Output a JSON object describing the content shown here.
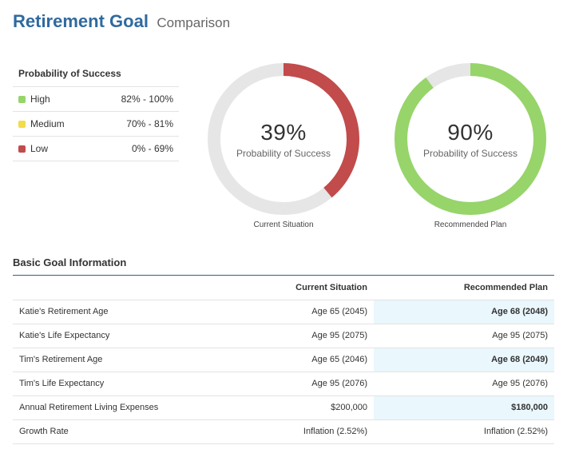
{
  "header": {
    "title": "Retirement Goal",
    "subtitle": "Comparison"
  },
  "legend": {
    "title": "Probability of Success",
    "items": [
      {
        "label": "High",
        "range": "82% - 100%",
        "color": "#97d46a"
      },
      {
        "label": "Medium",
        "range": "70% - 81%",
        "color": "#f2dc4a"
      },
      {
        "label": "Low",
        "range": "0% - 69%",
        "color": "#c24b4b"
      }
    ]
  },
  "gauges": [
    {
      "value": "39%",
      "fraction": 0.39,
      "label": "Probability of Success",
      "caption": "Current Situation",
      "color": "#c24b4b",
      "track": "#e6e6e6"
    },
    {
      "value": "90%",
      "fraction": 0.9,
      "label": "Probability of Success",
      "caption": "Recommended Plan",
      "color": "#97d46a",
      "track": "#e6e6e6"
    }
  ],
  "section": {
    "title": "Basic Goal Information"
  },
  "table": {
    "headers": {
      "label": "",
      "current": "Current Situation",
      "recommended": "Recommended Plan"
    },
    "rows": [
      {
        "label": "Katie's Retirement Age",
        "current": "Age 65 (2045)",
        "recommended": "Age 68 (2048)",
        "changed": true
      },
      {
        "label": "Katie's Life Expectancy",
        "current": "Age 95 (2075)",
        "recommended": "Age 95 (2075)",
        "changed": false
      },
      {
        "label": "Tim's Retirement Age",
        "current": "Age 65 (2046)",
        "recommended": "Age 68 (2049)",
        "changed": true
      },
      {
        "label": "Tim's Life Expectancy",
        "current": "Age 95 (2076)",
        "recommended": "Age 95 (2076)",
        "changed": false
      },
      {
        "label": "Annual Retirement Living Expenses",
        "current": "$200,000",
        "recommended": "$180,000",
        "changed": true
      },
      {
        "label": "Growth Rate",
        "current": "Inflation (2.52%)",
        "recommended": "Inflation (2.52%)",
        "changed": false
      }
    ]
  }
}
